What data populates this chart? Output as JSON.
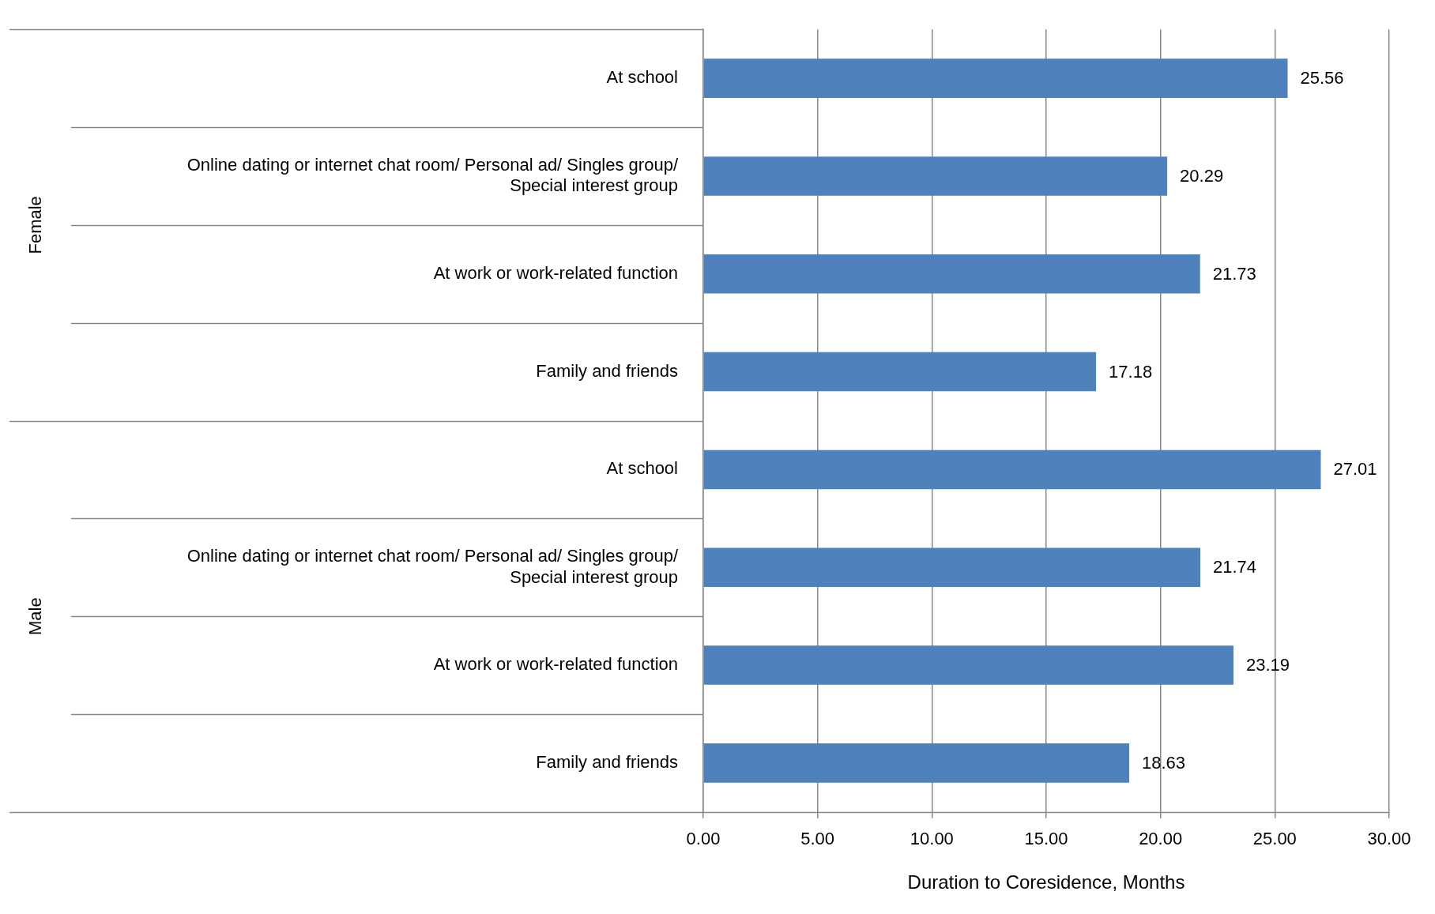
{
  "chart_data": {
    "type": "bar",
    "orientation": "horizontal",
    "xlabel": "Duration to Coresidence, Months",
    "categories": [
      "At school",
      "Online dating or internet chat room/ Personal ad/ Singles group/ Special interest group",
      "At work or work-related function",
      "Family and friends",
      "At school",
      "Online dating or internet chat room/ Personal ad/ Singles group/ Special interest group",
      "At work or work-related function",
      "Family and friends"
    ],
    "values": [
      25.56,
      20.29,
      21.73,
      17.18,
      27.01,
      21.74,
      23.19,
      18.63
    ],
    "color": "#4f81bd",
    "data_labels": true,
    "grid": "x",
    "xlim": [
      0,
      30
    ],
    "xticks": [
      {
        "value": 0,
        "label": "0.00"
      },
      {
        "value": 5,
        "label": "5.00"
      },
      {
        "value": 10,
        "label": "10.00"
      },
      {
        "value": 15,
        "label": "15.00"
      },
      {
        "value": 20,
        "label": "20.00"
      },
      {
        "value": 25,
        "label": "25.00"
      },
      {
        "value": 30,
        "label": "30.00"
      }
    ],
    "annotations": [
      "Female",
      "Male"
    ],
    "legend": false
  }
}
